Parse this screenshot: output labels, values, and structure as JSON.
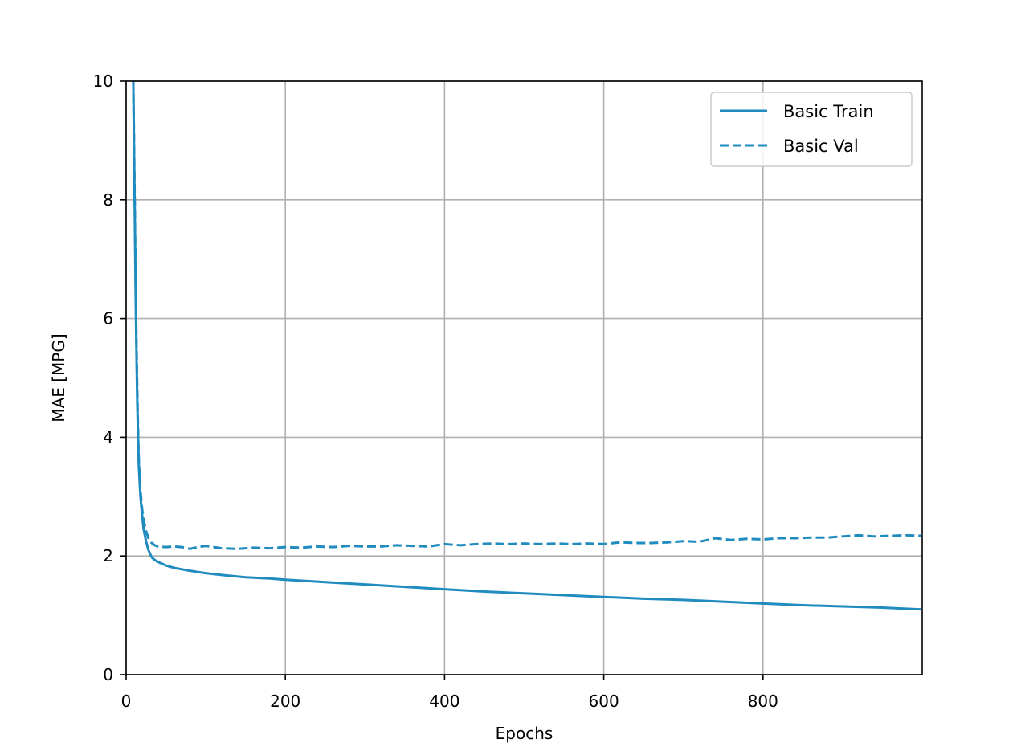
{
  "chart_data": {
    "type": "line",
    "title": "",
    "xlabel": "Epochs",
    "ylabel": "MAE [MPG]",
    "xlim": [
      0,
      1000
    ],
    "ylim": [
      0,
      10
    ],
    "x_ticks": [
      0,
      200,
      400,
      600,
      800
    ],
    "y_ticks": [
      0,
      2,
      4,
      6,
      8,
      10
    ],
    "grid": true,
    "legend_position": "top-right",
    "series": [
      {
        "name": "Basic Train",
        "style": "solid",
        "color": "#1f8bbf",
        "x": [
          9,
          10,
          11,
          12,
          13,
          14,
          15,
          16,
          18,
          20,
          22,
          25,
          28,
          32,
          36,
          40,
          50,
          60,
          80,
          100,
          120,
          150,
          180,
          200,
          250,
          300,
          350,
          400,
          450,
          500,
          550,
          600,
          650,
          700,
          750,
          800,
          850,
          900,
          950,
          999
        ],
        "y": [
          10.0,
          8.8,
          7.6,
          6.4,
          5.4,
          4.6,
          4.0,
          3.5,
          3.0,
          2.7,
          2.45,
          2.25,
          2.1,
          1.98,
          1.93,
          1.9,
          1.84,
          1.8,
          1.75,
          1.71,
          1.68,
          1.64,
          1.62,
          1.6,
          1.56,
          1.52,
          1.48,
          1.44,
          1.4,
          1.37,
          1.34,
          1.31,
          1.28,
          1.26,
          1.23,
          1.2,
          1.17,
          1.15,
          1.13,
          1.1
        ]
      },
      {
        "name": "Basic Val",
        "style": "dashed",
        "color": "#1f8bbf",
        "x": [
          9,
          10,
          11,
          12,
          13,
          14,
          15,
          16,
          18,
          20,
          22,
          25,
          28,
          32,
          36,
          40,
          50,
          60,
          70,
          80,
          90,
          100,
          120,
          140,
          160,
          180,
          200,
          220,
          240,
          260,
          280,
          300,
          320,
          340,
          360,
          380,
          400,
          420,
          440,
          460,
          480,
          500,
          520,
          540,
          560,
          580,
          600,
          620,
          640,
          660,
          680,
          700,
          720,
          740,
          760,
          780,
          800,
          820,
          840,
          860,
          880,
          900,
          920,
          940,
          960,
          980,
          999
        ],
        "y": [
          10.0,
          8.9,
          7.8,
          6.6,
          5.6,
          4.8,
          4.1,
          3.6,
          3.1,
          2.8,
          2.6,
          2.42,
          2.3,
          2.22,
          2.18,
          2.16,
          2.15,
          2.16,
          2.15,
          2.12,
          2.15,
          2.17,
          2.13,
          2.12,
          2.14,
          2.13,
          2.15,
          2.14,
          2.16,
          2.15,
          2.17,
          2.16,
          2.16,
          2.18,
          2.17,
          2.16,
          2.2,
          2.18,
          2.2,
          2.21,
          2.2,
          2.21,
          2.2,
          2.21,
          2.2,
          2.21,
          2.2,
          2.23,
          2.22,
          2.22,
          2.23,
          2.25,
          2.24,
          2.3,
          2.27,
          2.29,
          2.28,
          2.3,
          2.3,
          2.31,
          2.31,
          2.33,
          2.35,
          2.33,
          2.34,
          2.35,
          2.34
        ]
      }
    ]
  }
}
